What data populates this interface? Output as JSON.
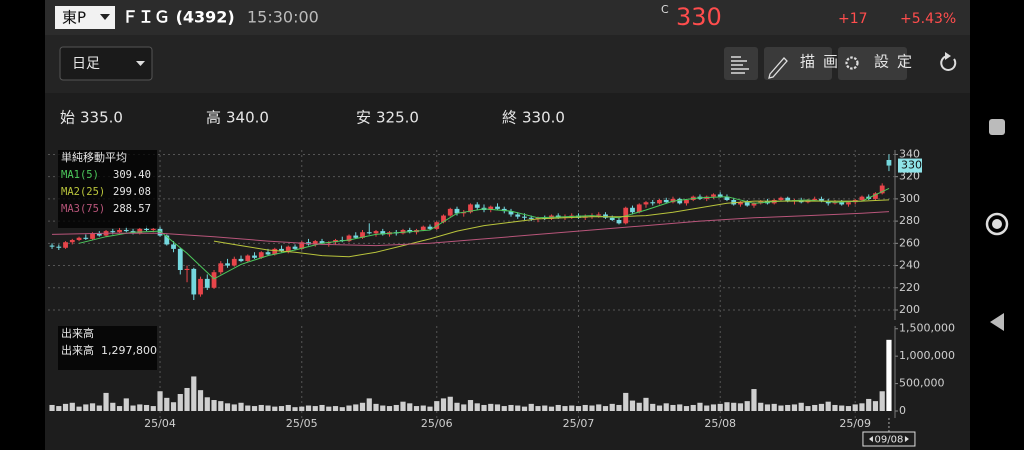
{
  "header": {
    "market": "東P",
    "name": "ＦＩＧ (4392)",
    "time": "15:30:00",
    "close_mark": "C",
    "price": "330",
    "change": "+17",
    "change_pct": "+5.43%"
  },
  "toolbar": {
    "period": "日足",
    "draw": "描画",
    "settings": "設定"
  },
  "ohlc_summary": [
    {
      "label": "始",
      "value": "335.0"
    },
    {
      "label": "高",
      "value": "340.0"
    },
    {
      "label": "安",
      "value": "325.0"
    },
    {
      "label": "終",
      "value": "330.0"
    }
  ],
  "chart_data": [
    {
      "type": "candlestick",
      "legend_title": "単純移動平均",
      "up_color": "#e8454a",
      "down_color": "#74d8de",
      "xlim": [
        -0.6,
        124.6
      ],
      "xticks": [
        {
          "value": 16,
          "label": "25/04"
        },
        {
          "value": 37,
          "label": "25/05"
        },
        {
          "value": 57,
          "label": "25/06"
        },
        {
          "value": 78,
          "label": "25/07"
        },
        {
          "value": 99,
          "label": "25/08"
        },
        {
          "value": 119,
          "label": "25/09"
        }
      ],
      "cursor": {
        "value": 124,
        "label": "09/08"
      },
      "ylim": [
        191,
        344
      ],
      "yticks": [
        200,
        220,
        240,
        260,
        280,
        300,
        320,
        340
      ],
      "grid": true,
      "ohlc": [
        [
          258,
          260,
          255,
          257
        ],
        [
          257,
          259,
          254,
          256
        ],
        [
          256,
          262,
          255,
          261
        ],
        [
          261,
          264,
          259,
          263
        ],
        [
          263,
          266,
          262,
          265
        ],
        [
          265,
          268,
          263,
          264
        ],
        [
          264,
          270,
          263,
          269
        ],
        [
          269,
          271,
          266,
          267
        ],
        [
          267,
          272,
          266,
          271
        ],
        [
          271,
          273,
          268,
          270
        ],
        [
          270,
          274,
          269,
          272
        ],
        [
          272,
          275,
          270,
          271
        ],
        [
          271,
          273,
          268,
          269
        ],
        [
          269,
          274,
          268,
          273
        ],
        [
          273,
          276,
          271,
          272
        ],
        [
          272,
          274,
          270,
          273
        ],
        [
          273,
          275,
          266,
          267
        ],
        [
          267,
          268,
          258,
          259
        ],
        [
          259,
          262,
          252,
          255
        ],
        [
          255,
          256,
          232,
          236
        ],
        [
          236,
          240,
          225,
          237
        ],
        [
          237,
          238,
          209,
          214
        ],
        [
          214,
          230,
          212,
          228
        ],
        [
          228,
          232,
          218,
          220
        ],
        [
          220,
          236,
          219,
          234
        ],
        [
          234,
          244,
          232,
          242
        ],
        [
          242,
          246,
          238,
          240
        ],
        [
          240,
          248,
          239,
          246
        ],
        [
          246,
          249,
          243,
          244
        ],
        [
          244,
          250,
          243,
          249
        ],
        [
          249,
          252,
          246,
          247
        ],
        [
          247,
          253,
          246,
          252
        ],
        [
          252,
          255,
          249,
          250
        ],
        [
          250,
          256,
          249,
          255
        ],
        [
          255,
          258,
          252,
          253
        ],
        [
          253,
          258,
          251,
          257
        ],
        [
          257,
          259,
          254,
          255
        ],
        [
          255,
          262,
          254,
          261
        ],
        [
          261,
          264,
          258,
          259
        ],
        [
          259,
          263,
          257,
          262
        ],
        [
          262,
          264,
          259,
          260
        ],
        [
          260,
          262,
          257,
          261
        ],
        [
          261,
          264,
          259,
          263
        ],
        [
          263,
          266,
          261,
          262
        ],
        [
          262,
          268,
          261,
          267
        ],
        [
          267,
          270,
          264,
          265
        ],
        [
          265,
          272,
          264,
          270
        ],
        [
          270,
          278,
          268,
          269
        ],
        [
          269,
          272,
          266,
          271
        ],
        [
          271,
          273,
          267,
          268
        ],
        [
          268,
          271,
          266,
          270
        ],
        [
          270,
          272,
          267,
          269
        ],
        [
          269,
          273,
          268,
          272
        ],
        [
          272,
          274,
          269,
          270
        ],
        [
          270,
          273,
          268,
          272
        ],
        [
          272,
          276,
          271,
          275
        ],
        [
          275,
          277,
          272,
          273
        ],
        [
          273,
          280,
          272,
          279
        ],
        [
          279,
          286,
          278,
          285
        ],
        [
          285,
          292,
          284,
          291
        ],
        [
          291,
          293,
          285,
          287
        ],
        [
          287,
          290,
          284,
          288
        ],
        [
          288,
          296,
          287,
          295
        ],
        [
          295,
          297,
          290,
          292
        ],
        [
          292,
          295,
          288,
          290
        ],
        [
          290,
          294,
          288,
          293
        ],
        [
          293,
          296,
          290,
          291
        ],
        [
          291,
          293,
          287,
          289
        ],
        [
          289,
          291,
          284,
          286
        ],
        [
          286,
          288,
          282,
          284
        ],
        [
          284,
          287,
          281,
          283
        ],
        [
          283,
          285,
          280,
          282
        ],
        [
          282,
          284,
          279,
          283
        ],
        [
          283,
          285,
          281,
          282
        ],
        [
          282,
          286,
          281,
          285
        ],
        [
          285,
          287,
          282,
          283
        ],
        [
          283,
          286,
          281,
          284
        ],
        [
          284,
          287,
          282,
          285
        ],
        [
          285,
          287,
          282,
          283
        ],
        [
          283,
          286,
          281,
          284
        ],
        [
          284,
          287,
          282,
          285
        ],
        [
          285,
          288,
          283,
          286
        ],
        [
          286,
          288,
          282,
          283
        ],
        [
          283,
          285,
          280,
          281
        ],
        [
          281,
          283,
          277,
          278
        ],
        [
          278,
          293,
          277,
          292
        ],
        [
          292,
          294,
          286,
          288
        ],
        [
          288,
          296,
          287,
          295
        ],
        [
          295,
          298,
          292,
          297
        ],
        [
          297,
          299,
          294,
          296
        ],
        [
          296,
          300,
          295,
          299
        ],
        [
          299,
          301,
          296,
          297
        ],
        [
          297,
          302,
          296,
          300
        ],
        [
          300,
          301,
          295,
          296
        ],
        [
          296,
          300,
          294,
          299
        ],
        [
          299,
          303,
          298,
          302
        ],
        [
          302,
          304,
          299,
          300
        ],
        [
          300,
          303,
          298,
          302
        ],
        [
          302,
          305,
          300,
          304
        ],
        [
          304,
          306,
          301,
          302
        ],
        [
          302,
          304,
          298,
          299
        ],
        [
          299,
          301,
          294,
          295
        ],
        [
          295,
          298,
          293,
          297
        ],
        [
          297,
          299,
          293,
          294
        ],
        [
          294,
          297,
          292,
          296
        ],
        [
          296,
          299,
          295,
          298
        ],
        [
          298,
          300,
          295,
          296
        ],
        [
          296,
          300,
          295,
          299
        ],
        [
          299,
          302,
          298,
          301
        ],
        [
          301,
          302,
          297,
          298
        ],
        [
          298,
          300,
          295,
          299
        ],
        [
          299,
          301,
          296,
          297
        ],
        [
          297,
          300,
          296,
          299
        ],
        [
          299,
          302,
          298,
          300
        ],
        [
          300,
          302,
          297,
          298
        ],
        [
          298,
          300,
          294,
          296
        ],
        [
          296,
          299,
          295,
          297
        ],
        [
          297,
          299,
          294,
          295
        ],
        [
          295,
          298,
          293,
          297
        ],
        [
          297,
          300,
          295,
          299
        ],
        [
          299,
          303,
          298,
          302
        ],
        [
          302,
          304,
          299,
          300
        ],
        [
          300,
          306,
          299,
          305
        ],
        [
          305,
          314,
          304,
          312
        ],
        [
          335,
          340,
          325,
          330
        ]
      ],
      "series": [
        {
          "name": "MA1(5)",
          "color": "#4cc95c",
          "latest": {
            "value": 309.4,
            "label": "309.40"
          },
          "x": [
            4,
            8,
            12,
            16,
            20,
            24,
            28,
            32,
            36,
            40,
            44,
            48,
            52,
            56,
            60,
            64,
            68,
            72,
            76,
            80,
            84,
            88,
            92,
            96,
            100,
            104,
            108,
            112,
            116,
            120,
            124
          ],
          "values": [
            260,
            266,
            270,
            271,
            251,
            228,
            241,
            249,
            254,
            260,
            263,
            268,
            270,
            272,
            287,
            291,
            289,
            283,
            284,
            285,
            283,
            290,
            298,
            301,
            302,
            296,
            298,
            299,
            297,
            298,
            309.4
          ]
        },
        {
          "name": "MA2(25)",
          "color": "#b9c43c",
          "latest": {
            "value": 299.08,
            "label": "299.08"
          },
          "x": [
            24,
            28,
            32,
            36,
            40,
            44,
            48,
            52,
            56,
            60,
            64,
            68,
            72,
            76,
            80,
            84,
            88,
            92,
            96,
            100,
            104,
            108,
            112,
            116,
            120,
            124
          ],
          "values": [
            262,
            258,
            254,
            252,
            249,
            248,
            252,
            258,
            264,
            271,
            276,
            279,
            282,
            283,
            284,
            284,
            285,
            288,
            292,
            296,
            298,
            298,
            298,
            298,
            298,
            299.08
          ]
        },
        {
          "name": "MA3(75)",
          "color": "#b8557a",
          "latest": {
            "value": 288.57,
            "label": "288.57"
          },
          "x": [
            0,
            8,
            16,
            24,
            32,
            40,
            48,
            56,
            64,
            72,
            80,
            88,
            96,
            104,
            112,
            120,
            124
          ],
          "values": [
            268,
            269,
            269,
            266,
            262,
            259,
            258,
            260,
            264,
            268,
            272,
            276,
            280,
            283,
            285,
            287,
            288.57
          ]
        }
      ]
    },
    {
      "type": "bar",
      "title": "出来高",
      "name": "出来高",
      "latest": {
        "value": 1297800,
        "label": "1,297,800"
      },
      "color": "#cfcfcf",
      "xlim": [
        -0.6,
        124.6
      ],
      "ylim": [
        0,
        1550000
      ],
      "yticks": [
        0,
        {
          "value": 500000,
          "label": "500,000"
        },
        {
          "value": 1000000,
          "label": "1,000,000"
        },
        {
          "value": 1500000,
          "label": "1,500,000"
        }
      ],
      "values": [
        110000,
        90000,
        130000,
        150000,
        80000,
        120000,
        140000,
        100000,
        330000,
        150000,
        90000,
        230000,
        100000,
        120000,
        110000,
        90000,
        360000,
        240000,
        160000,
        310000,
        420000,
        630000,
        380000,
        250000,
        200000,
        180000,
        140000,
        120000,
        150000,
        100000,
        90000,
        110000,
        100000,
        80000,
        90000,
        110000,
        70000,
        80000,
        100000,
        90000,
        110000,
        80000,
        90000,
        70000,
        100000,
        120000,
        150000,
        230000,
        130000,
        100000,
        90000,
        110000,
        170000,
        140000,
        90000,
        100000,
        80000,
        180000,
        230000,
        260000,
        150000,
        120000,
        200000,
        140000,
        110000,
        130000,
        120000,
        90000,
        110000,
        100000,
        80000,
        130000,
        90000,
        100000,
        80000,
        110000,
        90000,
        100000,
        90000,
        110000,
        100000,
        120000,
        90000,
        130000,
        110000,
        330000,
        190000,
        150000,
        240000,
        130000,
        100000,
        140000,
        110000,
        120000,
        90000,
        110000,
        150000,
        100000,
        120000,
        130000,
        160000,
        150000,
        140000,
        180000,
        400000,
        150000,
        120000,
        130000,
        100000,
        110000,
        120000,
        150000,
        90000,
        110000,
        130000,
        170000,
        110000,
        100000,
        90000,
        120000,
        140000,
        220000,
        180000,
        360000,
        1297800
      ]
    }
  ]
}
